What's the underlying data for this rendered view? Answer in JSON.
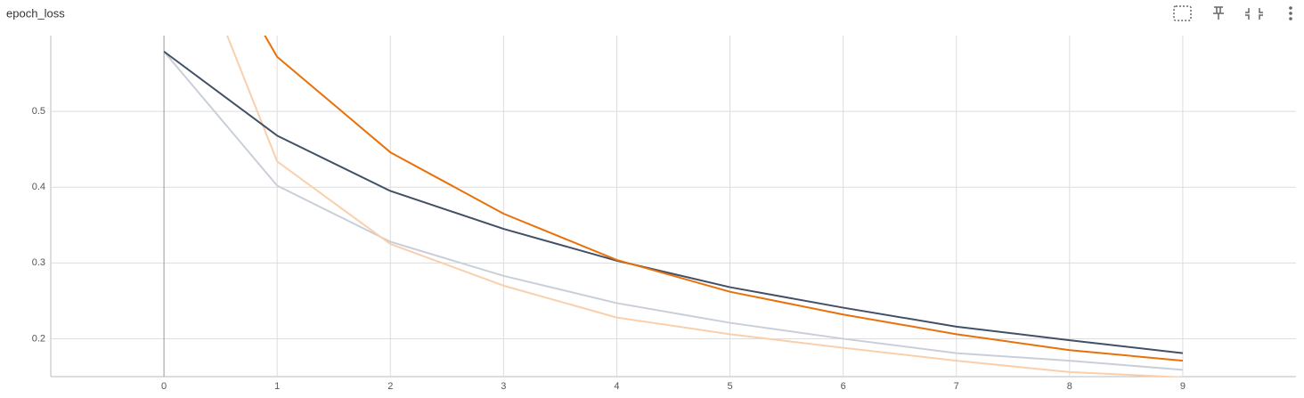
{
  "chart_data": {
    "type": "line",
    "title": "epoch_loss",
    "x": [
      0,
      1,
      2,
      3,
      4,
      5,
      6,
      7,
      8,
      9
    ],
    "series": [
      {
        "color": "#c9cfd9",
        "values": [
          0.579,
          0.402,
          0.328,
          0.283,
          0.247,
          0.221,
          0.2,
          0.181,
          0.171,
          0.159
        ]
      },
      {
        "color": "#f9cfac",
        "values": [
          0.81,
          0.434,
          0.325,
          0.27,
          0.228,
          0.206,
          0.188,
          0.171,
          0.156,
          0.149
        ]
      },
      {
        "color": "#425066",
        "values": [
          0.579,
          0.468,
          0.395,
          0.345,
          0.303,
          0.268,
          0.241,
          0.216,
          0.198,
          0.181
        ]
      },
      {
        "color": "#e8710a",
        "values": [
          0.83,
          0.572,
          0.446,
          0.365,
          0.304,
          0.262,
          0.232,
          0.206,
          0.185,
          0.171
        ]
      }
    ],
    "xlim": [
      -1,
      10
    ],
    "ylim": [
      0.15,
      0.6
    ],
    "xticks": [
      0,
      1,
      2,
      3,
      4,
      5,
      6,
      7,
      8,
      9
    ],
    "yticks": [
      0.2,
      0.3,
      0.4,
      0.5
    ],
    "grid": true
  }
}
